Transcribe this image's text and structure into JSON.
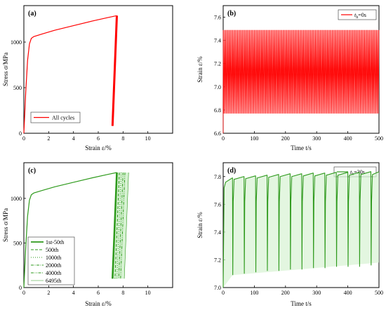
{
  "colors": {
    "red": "#ff0000",
    "green": "#2e9a1c",
    "green_fill": "#d7f2d3",
    "red_fill": "#ffd6d6"
  },
  "chart_data": [
    {
      "panel": "(a)",
      "type": "line",
      "xlabel": "Strain ε/%",
      "ylabel": "Stress σ/MPa",
      "xlim": [
        0,
        12
      ],
      "ylim": [
        0,
        1400
      ],
      "xticks": [
        0,
        2,
        4,
        6,
        8,
        10
      ],
      "yticks": [
        0,
        500,
        1000
      ],
      "legend": "bottom-left",
      "series": [
        {
          "name": "All cycles",
          "x": [
            0,
            0.15,
            0.3,
            0.45,
            0.6,
            0.8,
            1.5,
            2.5,
            4.0,
            5.5,
            6.8,
            7.5,
            7.15
          ],
          "y": [
            0,
            450,
            800,
            980,
            1040,
            1060,
            1090,
            1130,
            1180,
            1230,
            1270,
            1290,
            80
          ]
        }
      ]
    },
    {
      "panel": "(b)",
      "type": "line",
      "xlabel": "Time t/s",
      "ylabel": "Strain ε/%",
      "xlim": [
        0,
        500
      ],
      "ylim": [
        6.6,
        7.7
      ],
      "xticks": [
        0,
        100,
        200,
        300,
        400,
        500
      ],
      "yticks": [
        6.6,
        6.8,
        7.0,
        7.2,
        7.4,
        7.6
      ],
      "legend": "top-right",
      "series": [
        {
          "name": "t_h=0s",
          "upper": 7.49,
          "lower": 6.77,
          "cycles": 130
        }
      ]
    },
    {
      "panel": "(c)",
      "type": "line",
      "xlabel": "Strain ε/%",
      "ylabel": "Stress σ/MPa",
      "xlim": [
        0,
        12
      ],
      "ylim": [
        0,
        1400
      ],
      "xticks": [
        0,
        2,
        4,
        6,
        8,
        10
      ],
      "yticks": [
        0,
        500,
        1000
      ],
      "legend": "bottom-left",
      "loading": {
        "x": [
          0,
          0.15,
          0.3,
          0.45,
          0.6,
          0.8,
          1.5,
          2.5,
          4.0,
          5.5,
          6.8,
          7.5
        ],
        "y": [
          0,
          450,
          800,
          980,
          1040,
          1060,
          1090,
          1130,
          1180,
          1230,
          1270,
          1290
        ]
      },
      "series": [
        {
          "name": "1st-50th",
          "top_x": 7.5,
          "bottom_x": 7.15
        },
        {
          "name": "500th",
          "top_x": 7.7,
          "bottom_x": 7.35
        },
        {
          "name": "1000th",
          "top_x": 7.85,
          "bottom_x": 7.5
        },
        {
          "name": "2000th",
          "top_x": 8.0,
          "bottom_x": 7.65
        },
        {
          "name": "4000th",
          "top_x": 8.15,
          "bottom_x": 7.8
        },
        {
          "name": "6495th",
          "top_x": 8.45,
          "bottom_x": 8.1
        }
      ],
      "unload_top_y": 1290,
      "unload_bottom_y": 100
    },
    {
      "panel": "(d)",
      "type": "line",
      "xlabel": "Time t/s",
      "ylabel": "Strain ε/%",
      "xlim": [
        0,
        500
      ],
      "ylim": [
        7.0,
        7.9
      ],
      "xticks": [
        0,
        100,
        200,
        300,
        400,
        500
      ],
      "yticks": [
        7.0,
        7.2,
        7.4,
        7.6,
        7.8
      ],
      "legend": "top-right",
      "series": [
        {
          "name": "t_h=30s",
          "dip_times": [
            30,
            67,
            104,
            141,
            178,
            215,
            252,
            289,
            326,
            363,
            400,
            437,
            474
          ],
          "dip_min": [
            7.09,
            7.1,
            7.11,
            7.12,
            7.12,
            7.13,
            7.13,
            7.14,
            7.14,
            7.15,
            7.15,
            7.15,
            7.16
          ],
          "hold_level": [
            7.79,
            7.8,
            7.805,
            7.81,
            7.815,
            7.82,
            7.82,
            7.825,
            7.825,
            7.83,
            7.83,
            7.83,
            7.835,
            7.835
          ]
        }
      ]
    }
  ],
  "legend": {
    "a": [
      "All cycles"
    ],
    "b": [
      "t",
      "h",
      "=0s"
    ],
    "c": [
      "1st-50th",
      "500th",
      "1000th",
      "2000th",
      "4000th",
      "6495th"
    ],
    "d": [
      "t",
      "h",
      "=30s"
    ]
  }
}
